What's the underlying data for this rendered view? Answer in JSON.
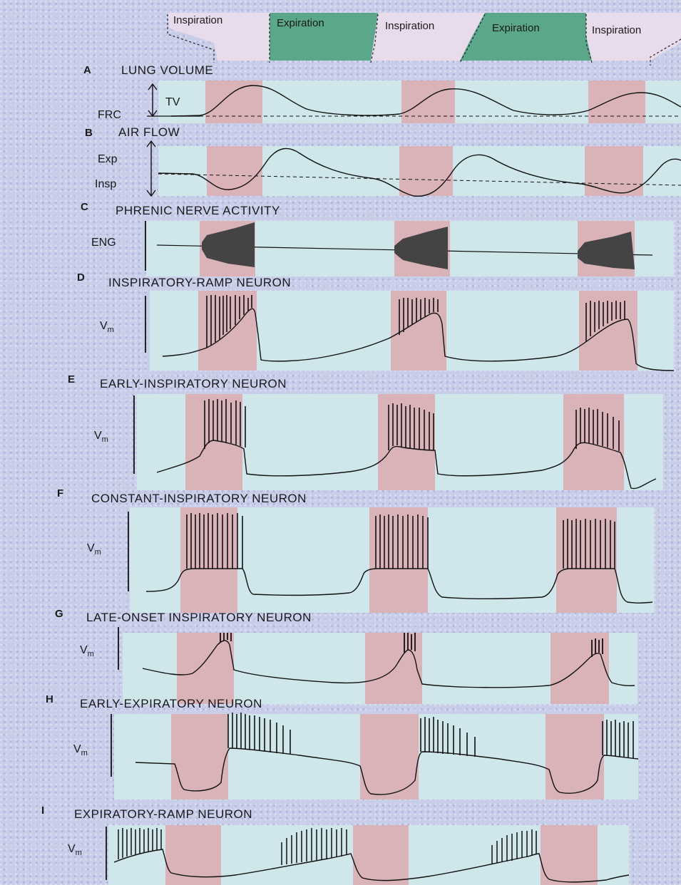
{
  "phases": [
    "Inspiration",
    "Expiration",
    "Inspiration",
    "Expiration",
    "Inspiration"
  ],
  "colors": {
    "inspiration_band": "#d9b3b8",
    "expiration_band": "#cfe7ea",
    "expiration_header": "#5aa78a",
    "inspiration_header": "#e8dcec",
    "trace": "#111111"
  },
  "panels": [
    {
      "letter": "A",
      "title": "LUNG VOLUME",
      "labels": {
        "top": "TV",
        "bottom": "FRC"
      }
    },
    {
      "letter": "B",
      "title": "AIR FLOW",
      "labels": {
        "top": "Exp",
        "bottom": "Insp"
      }
    },
    {
      "letter": "C",
      "title": "PHRENIC NERVE ACTIVITY",
      "labels": {
        "main": "ENG"
      }
    },
    {
      "letter": "D",
      "title": "INSPIRATORY-RAMP NEURON",
      "labels": {
        "main": "V",
        "sub": "m"
      }
    },
    {
      "letter": "E",
      "title": "EARLY-INSPIRATORY NEURON",
      "labels": {
        "main": "V",
        "sub": "m"
      }
    },
    {
      "letter": "F",
      "title": "CONSTANT-INSPIRATORY NEURON",
      "labels": {
        "main": "V",
        "sub": "m"
      }
    },
    {
      "letter": "G",
      "title": "LATE-ONSET INSPIRATORY NEURON",
      "labels": {
        "main": "V",
        "sub": "m"
      }
    },
    {
      "letter": "H",
      "title": "EARLY-EXPIRATORY NEURON",
      "labels": {
        "main": "V",
        "sub": "m"
      }
    },
    {
      "letter": "I",
      "title": "EXPIRATORY-RAMP NEURON",
      "labels": {
        "main": "V",
        "sub": "m"
      }
    }
  ]
}
